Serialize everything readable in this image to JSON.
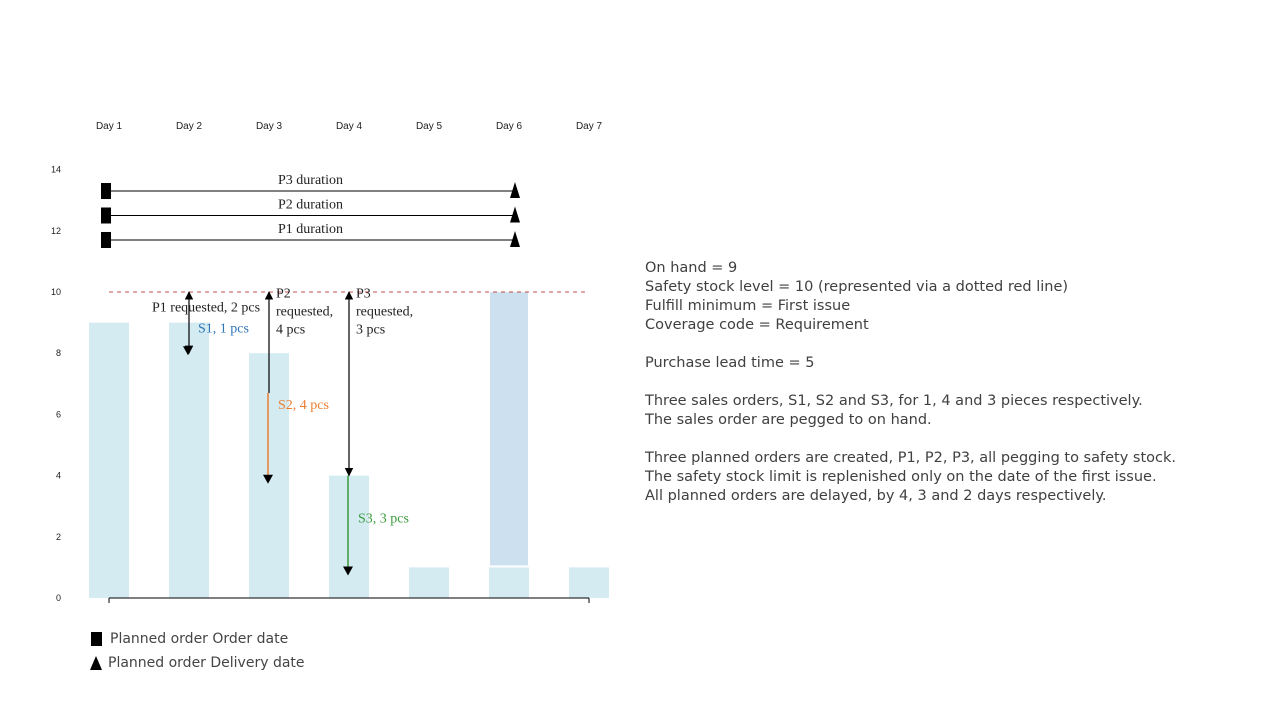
{
  "chart_data": {
    "type": "bar",
    "categories": [
      "Day 1",
      "Day 2",
      "Day 3",
      "Day 4",
      "Day 5",
      "Day 6",
      "Day 7"
    ],
    "values": [
      9,
      9,
      8,
      4,
      1,
      1,
      1
    ],
    "received_on_day6": 9,
    "yticks": [
      "0",
      "2",
      "4",
      "6",
      "8",
      "10",
      "12",
      "14"
    ],
    "ylim": [
      0,
      14
    ],
    "safety_stock": 10,
    "colors": {
      "bar": "#d4ebf2",
      "received": "#cde0f0",
      "safety_line": "#c0504d",
      "s1": "#2e75b6",
      "s2": "#ed7d31",
      "s3": "#3a9b3a"
    },
    "durations": [
      {
        "label": "P3 duration",
        "from_day": 1,
        "to_day": 6,
        "level": 13.3
      },
      {
        "label": "P2 duration",
        "from_day": 1,
        "to_day": 6,
        "level": 12.5
      },
      {
        "label": "P1 duration",
        "from_day": 1,
        "to_day": 6,
        "level": 11.7
      }
    ],
    "requests": [
      {
        "id": "P1",
        "day": 2,
        "from": 10,
        "to": 8,
        "lines": [
          "P1 requested, 2 pcs"
        ]
      },
      {
        "id": "P2",
        "day": 3,
        "from": 10,
        "to": 6.7,
        "lines": [
          "P2",
          "requested,",
          "4 pcs"
        ]
      },
      {
        "id": "P3",
        "day": 4,
        "from": 10,
        "to": 4,
        "lines": [
          "P3",
          "requested,",
          "3 pcs"
        ]
      }
    ],
    "issues": [
      {
        "id": "S1",
        "day": 2,
        "from": 9,
        "to": 8,
        "label": "S1, 1 pcs"
      },
      {
        "id": "S2",
        "day": 3,
        "from": 6.7,
        "to": 3.8,
        "label": "S2, 4 pcs"
      },
      {
        "id": "S3",
        "day": 4,
        "from": 4,
        "to": 0.8,
        "label": "S3, 3 pcs"
      }
    ]
  },
  "legend": {
    "order_date": "Planned order Order date",
    "delivery_date": "Planned order Delivery date"
  },
  "notes": [
    "On hand = 9",
    "Safety stock level = 10 (represented via a dotted red line)",
    "Fulfill minimum = First issue",
    "Coverage code = Requirement",
    "",
    "Purchase lead time = 5",
    "",
    "Three sales orders, S1, S2 and S3, for 1, 4 and 3 pieces respectively.",
    "The sales order are pegged to on hand.",
    "",
    "Three planned orders are created, P1, P2, P3, all pegging to safety stock.",
    "The safety stock limit is replenished only on the date of the first issue.",
    "All planned orders are delayed, by 4, 3 and 2 days respectively."
  ]
}
